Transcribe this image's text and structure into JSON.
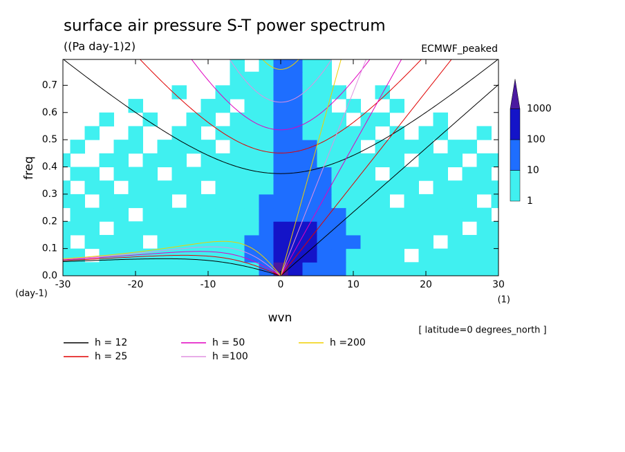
{
  "chart_data": {
    "type": "wavenumber-frequency",
    "title": "surface air pressure S-T power spectrum",
    "subtitle": "((Pa day-1)2)",
    "source": "ECMWF_peaked",
    "x_label": "wvn",
    "y_label": "freq",
    "x_unit": "(1)",
    "y_unit": "(day-1)",
    "note": "[ latitude=0 degrees_north ]",
    "xlim": [
      -30,
      30
    ],
    "xticks": [
      -30,
      -20,
      -10,
      0,
      10,
      20,
      30
    ],
    "ylim": [
      0,
      0.795
    ],
    "yticks": [
      {
        "value": 0,
        "label": "0.0"
      },
      0.1,
      0.2,
      0.3,
      0.4,
      0.5,
      0.6,
      0.7
    ],
    "colorbar": {
      "levels": [
        1,
        10,
        100,
        1000
      ],
      "colors": [
        "#40f0f0",
        "#1e6eff",
        "#1414c8",
        "#4a1aa0"
      ]
    },
    "field": {
      "x": [
        -30,
        -28,
        -26,
        -24,
        -22,
        -20,
        -18,
        -16,
        -14,
        -12,
        -10,
        -8,
        -6,
        -4,
        -2,
        0,
        2,
        4,
        6,
        8,
        10,
        12,
        14,
        16,
        18,
        20,
        22,
        24,
        26,
        28,
        30
      ],
      "y": [
        0.025,
        0.075,
        0.125,
        0.175,
        0.225,
        0.275,
        0.325,
        0.375,
        0.425,
        0.475,
        0.525,
        0.575,
        0.625,
        0.675,
        0.725,
        0.775
      ],
      "values": [
        [
          5,
          5,
          5,
          5,
          5,
          5,
          5,
          5,
          5,
          5,
          5,
          5,
          5,
          5,
          50,
          2000,
          500,
          50,
          50,
          50,
          5,
          5,
          5,
          5,
          5,
          5,
          5,
          5,
          5,
          5,
          5
        ],
        [
          5,
          5,
          0,
          5,
          5,
          5,
          5,
          5,
          5,
          5,
          5,
          5,
          5,
          50,
          50,
          500,
          500,
          500,
          50,
          50,
          5,
          5,
          5,
          5,
          0,
          5,
          5,
          5,
          5,
          5,
          5
        ],
        [
          5,
          0,
          5,
          5,
          5,
          5,
          0,
          5,
          5,
          5,
          5,
          5,
          5,
          50,
          50,
          500,
          500,
          500,
          50,
          50,
          50,
          5,
          5,
          5,
          5,
          5,
          0,
          5,
          5,
          5,
          5
        ],
        [
          5,
          5,
          5,
          0,
          5,
          5,
          5,
          5,
          5,
          5,
          5,
          5,
          5,
          5,
          50,
          500,
          500,
          500,
          50,
          50,
          5,
          5,
          5,
          5,
          5,
          5,
          5,
          5,
          0,
          5,
          5
        ],
        [
          0,
          5,
          5,
          5,
          5,
          0,
          5,
          5,
          5,
          5,
          5,
          5,
          5,
          5,
          50,
          50,
          50,
          50,
          50,
          50,
          5,
          5,
          5,
          5,
          5,
          5,
          5,
          5,
          5,
          5,
          0
        ],
        [
          5,
          5,
          0,
          5,
          5,
          5,
          5,
          5,
          0,
          5,
          5,
          5,
          5,
          5,
          50,
          50,
          50,
          50,
          50,
          5,
          5,
          5,
          5,
          0,
          5,
          5,
          5,
          5,
          5,
          0,
          5
        ],
        [
          5,
          0,
          5,
          5,
          0,
          5,
          5,
          5,
          5,
          5,
          0,
          5,
          5,
          5,
          5,
          50,
          50,
          50,
          50,
          5,
          5,
          5,
          5,
          5,
          5,
          0,
          5,
          5,
          5,
          5,
          5
        ],
        [
          0,
          5,
          5,
          0,
          5,
          5,
          5,
          0,
          5,
          5,
          5,
          5,
          5,
          5,
          5,
          50,
          50,
          50,
          50,
          5,
          5,
          5,
          0,
          5,
          5,
          5,
          5,
          0,
          5,
          5,
          0
        ],
        [
          5,
          0,
          0,
          5,
          5,
          0,
          5,
          5,
          5,
          0,
          5,
          5,
          5,
          5,
          5,
          50,
          50,
          50,
          5,
          5,
          5,
          5,
          5,
          5,
          0,
          5,
          5,
          5,
          0,
          5,
          5
        ],
        [
          0,
          5,
          0,
          0,
          5,
          5,
          0,
          5,
          5,
          5,
          5,
          0,
          5,
          5,
          5,
          50,
          50,
          50,
          5,
          5,
          5,
          0,
          5,
          5,
          5,
          5,
          0,
          5,
          5,
          0,
          0
        ],
        [
          0,
          0,
          5,
          0,
          0,
          5,
          0,
          0,
          5,
          5,
          0,
          5,
          5,
          5,
          5,
          50,
          50,
          5,
          5,
          5,
          5,
          5,
          0,
          5,
          0,
          5,
          5,
          0,
          0,
          5,
          0
        ],
        [
          0,
          0,
          0,
          5,
          0,
          0,
          5,
          0,
          0,
          5,
          5,
          0,
          5,
          5,
          5,
          50,
          50,
          5,
          5,
          5,
          0,
          5,
          5,
          0,
          0,
          0,
          5,
          0,
          0,
          0,
          0
        ],
        [
          0,
          0,
          0,
          0,
          0,
          5,
          0,
          0,
          0,
          0,
          5,
          5,
          0,
          5,
          5,
          50,
          50,
          5,
          5,
          0,
          5,
          0,
          0,
          5,
          0,
          0,
          0,
          0,
          0,
          0,
          0
        ],
        [
          0,
          0,
          0,
          0,
          0,
          0,
          0,
          0,
          5,
          0,
          0,
          5,
          5,
          5,
          5,
          50,
          50,
          5,
          5,
          5,
          0,
          0,
          5,
          0,
          0,
          0,
          0,
          0,
          0,
          0,
          0
        ],
        [
          0,
          0,
          0,
          0,
          0,
          0,
          0,
          0,
          0,
          0,
          0,
          0,
          5,
          5,
          5,
          50,
          50,
          5,
          5,
          0,
          0,
          0,
          0,
          0,
          0,
          0,
          0,
          0,
          0,
          0,
          0
        ],
        [
          0,
          0,
          0,
          0,
          0,
          0,
          0,
          0,
          0,
          0,
          0,
          0,
          5,
          0,
          5,
          50,
          50,
          5,
          5,
          0,
          0,
          0,
          0,
          0,
          0,
          0,
          0,
          0,
          0,
          0,
          0
        ]
      ]
    },
    "series": [
      {
        "name": "h = 12",
        "color": "#000000",
        "h": 12
      },
      {
        "name": "h = 25",
        "color": "#e00000",
        "h": 25
      },
      {
        "name": "h = 50",
        "color": "#e000c0",
        "h": 50
      },
      {
        "name": "h =100",
        "color": "#e090e0",
        "h": 100
      },
      {
        "name": "h =200",
        "color": "#f0d000",
        "h": 200
      }
    ]
  }
}
